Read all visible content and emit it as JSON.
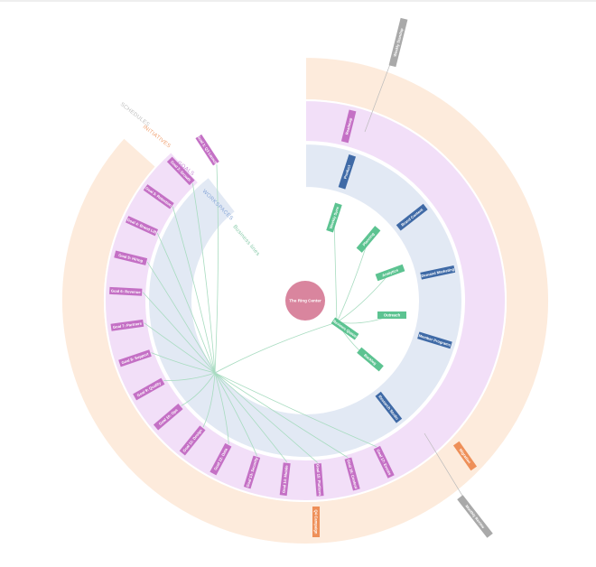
{
  "colors": {
    "outer_ring": "#fdebdc",
    "goals_ring": "#f2dff8",
    "workspace_ring": "#e2e9f4",
    "center": "#d9859e",
    "goal_tag": "#c470c5",
    "workspace_tag": "#3f6aa6",
    "task_tag": "#5cc391",
    "initiative_tag": "#ee8f58",
    "grey_tag": "#a9a9a9",
    "link": "#a8dcc0"
  },
  "ring_labels": {
    "schedules": "SCHEDULES",
    "initiatives": "INITIATIVES",
    "goals": "GOALS",
    "workspaces": "WORKSPACES",
    "business_lines": "Business lines"
  },
  "center": {
    "label": "The Ring Center"
  },
  "goals": [
    "Goal 1: Q3 Launch",
    "Goal 2: Growth",
    "Goal 3: Retention",
    "Goal 4: Brand Lift",
    "Goal 5: Hiring",
    "Goal 6: Revenue",
    "Goal 7: Partners",
    "Goal 8: Support",
    "Goal 9: Quality",
    "Goal 10: Ops",
    "Goal 11: Design",
    "Goal 12: Data",
    "Goal 13: Security",
    "Goal 14: Mobile",
    "Goal 15: Platform",
    "Goal 16: Content",
    "Goal 17: Events"
  ],
  "workspaces": [
    "Product",
    "Brand Content",
    "Demand Marketing",
    "Member Programs",
    "Research Studio"
  ],
  "tasks": [
    "Weekly Sync",
    "Planning",
    "Analytics",
    "Outreach",
    "Reviews Queue",
    "Backlog"
  ],
  "initiatives": [
    "Migration",
    "Q4 Campaign"
  ],
  "schedules": [
    "Weekly Standup",
    "Monthly Review"
  ],
  "extra_goal": "Roadmap"
}
